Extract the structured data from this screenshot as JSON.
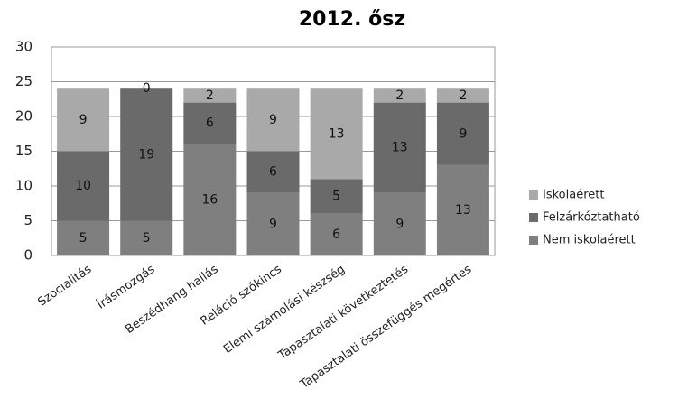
{
  "chart_data": {
    "type": "stacked_bar",
    "title": "2012. ősz",
    "categories": [
      "Szocialitás",
      "Írásmozgás",
      "Beszédhang hallás",
      "Reláció szókincs",
      "Elemi számolási készség",
      "Tapasztalati következtetés",
      "Tapasztalati összefüggés megértés"
    ],
    "series": [
      {
        "name": "Nem iskolaérett",
        "color": "#7f7f7f",
        "values": [
          5,
          5,
          16,
          9,
          6,
          9,
          13
        ]
      },
      {
        "name": "Felzárkóztatható",
        "color": "#6a6a6a",
        "values": [
          10,
          19,
          6,
          6,
          5,
          13,
          9
        ]
      },
      {
        "name": "Iskolaérett",
        "color": "#a9a9a9",
        "values": [
          9,
          0,
          2,
          9,
          13,
          2,
          2
        ]
      }
    ],
    "ylim": [
      0,
      30
    ],
    "yticks": [
      0,
      5,
      10,
      15,
      20,
      25,
      30
    ],
    "grid": true
  }
}
